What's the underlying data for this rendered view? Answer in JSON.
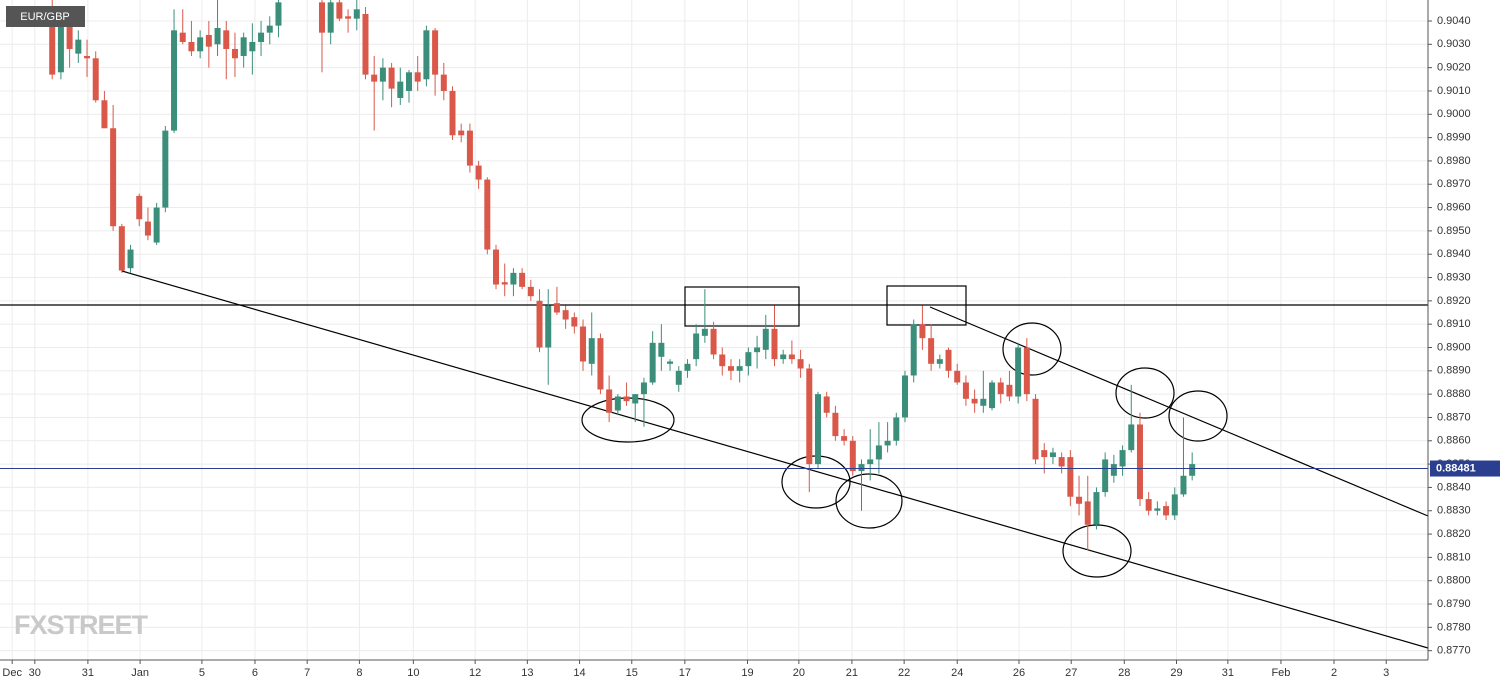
{
  "chart_data": {
    "type": "candlestick",
    "title": "EUR/GBP",
    "watermark": "FXSTREET",
    "grid": true,
    "xlim": [
      0,
      164.1
    ],
    "ylim": [
      0.8766,
      0.9049
    ],
    "xticks": [
      {
        "value": 1.4,
        "label": "Dec"
      },
      {
        "value": 4.0,
        "label": "30"
      },
      {
        "value": 10.1,
        "label": "31"
      },
      {
        "value": 16.1,
        "label": "Jan"
      },
      {
        "value": 23.2,
        "label": "5"
      },
      {
        "value": 29.3,
        "label": "6"
      },
      {
        "value": 35.3,
        "label": "7"
      },
      {
        "value": 41.3,
        "label": "8"
      },
      {
        "value": 47.5,
        "label": "10"
      },
      {
        "value": 54.6,
        "label": "12"
      },
      {
        "value": 60.6,
        "label": "13"
      },
      {
        "value": 66.6,
        "label": "14"
      },
      {
        "value": 72.6,
        "label": "15"
      },
      {
        "value": 78.7,
        "label": "17"
      },
      {
        "value": 85.9,
        "label": "19"
      },
      {
        "value": 91.8,
        "label": "20"
      },
      {
        "value": 97.9,
        "label": "21"
      },
      {
        "value": 103.9,
        "label": "22"
      },
      {
        "value": 110.0,
        "label": "24"
      },
      {
        "value": 117.1,
        "label": "26"
      },
      {
        "value": 123.1,
        "label": "27"
      },
      {
        "value": 129.2,
        "label": "28"
      },
      {
        "value": 135.2,
        "label": "29"
      },
      {
        "value": 141.1,
        "label": "31"
      },
      {
        "value": 147.2,
        "label": "Feb"
      },
      {
        "value": 153.3,
        "label": "2"
      },
      {
        "value": 159.3,
        "label": "3"
      }
    ],
    "yticks": [
      {
        "value": 0.877,
        "label": "0.8770"
      },
      {
        "value": 0.878,
        "label": "0.8780"
      },
      {
        "value": 0.879,
        "label": "0.8790"
      },
      {
        "value": 0.88,
        "label": "0.8800"
      },
      {
        "value": 0.881,
        "label": "0.8810"
      },
      {
        "value": 0.882,
        "label": "0.8820"
      },
      {
        "value": 0.883,
        "label": "0.8830"
      },
      {
        "value": 0.884,
        "label": "0.8840"
      },
      {
        "value": 0.885,
        "label": "0.8850"
      },
      {
        "value": 0.886,
        "label": "0.8860"
      },
      {
        "value": 0.887,
        "label": "0.8870"
      },
      {
        "value": 0.888,
        "label": "0.8880"
      },
      {
        "value": 0.889,
        "label": "0.8890"
      },
      {
        "value": 0.89,
        "label": "0.8900"
      },
      {
        "value": 0.891,
        "label": "0.8910"
      },
      {
        "value": 0.892,
        "label": "0.8920"
      },
      {
        "value": 0.893,
        "label": "0.8930"
      },
      {
        "value": 0.894,
        "label": "0.8940"
      },
      {
        "value": 0.895,
        "label": "0.8950"
      },
      {
        "value": 0.896,
        "label": "0.8960"
      },
      {
        "value": 0.897,
        "label": "0.8970"
      },
      {
        "value": 0.898,
        "label": "0.8980"
      },
      {
        "value": 0.899,
        "label": "0.8990"
      },
      {
        "value": 0.9,
        "label": "0.9000"
      },
      {
        "value": 0.901,
        "label": "0.9010"
      },
      {
        "value": 0.902,
        "label": "0.9020"
      },
      {
        "value": 0.903,
        "label": "0.9030"
      },
      {
        "value": 0.904,
        "label": "0.9040"
      }
    ],
    "last_price": {
      "value": 0.88481,
      "label": "0.88481"
    },
    "series": [
      {
        "up_color": "#3b8e7a",
        "down_color": "#d9584a",
        "x": [
          6,
          7,
          8,
          9,
          10,
          11,
          12,
          13,
          14,
          15,
          16,
          17,
          18,
          19,
          20,
          21,
          22,
          23,
          24,
          25,
          26,
          27,
          28,
          29,
          30,
          31,
          32,
          37,
          38,
          39,
          40,
          41,
          42,
          43,
          44,
          45,
          46,
          47,
          48,
          49,
          50,
          51,
          52,
          53,
          54,
          55,
          56,
          57,
          58,
          59,
          60,
          61,
          62,
          63,
          64,
          65,
          66,
          67,
          68,
          69,
          70,
          71,
          72,
          73,
          74,
          75,
          76,
          77,
          78,
          79,
          80,
          81,
          82,
          83,
          84,
          85,
          86,
          87,
          88,
          89,
          90,
          91,
          92,
          93,
          94,
          95,
          96,
          97,
          98,
          99,
          100,
          101,
          102,
          103,
          104,
          105,
          106,
          107,
          108,
          109,
          110,
          111,
          112,
          113,
          114,
          115,
          116,
          117,
          118,
          119,
          120,
          121,
          122,
          123,
          124,
          125,
          126,
          127,
          128,
          129,
          130,
          131,
          132,
          133,
          134,
          135,
          136,
          137
        ],
        "ohlc": [
          [
            0.9045,
            0.905,
            0.9015,
            0.9017
          ],
          [
            0.9018,
            0.9045,
            0.9015,
            0.904
          ],
          [
            0.904,
            0.9045,
            0.902,
            0.9028
          ],
          [
            0.9026,
            0.9036,
            0.9022,
            0.9032
          ],
          [
            0.9025,
            0.9032,
            0.9016,
            0.9024
          ],
          [
            0.9024,
            0.9027,
            0.9005,
            0.9006
          ],
          [
            0.9006,
            0.901,
            0.8995,
            0.8994
          ],
          [
            0.8994,
            0.9004,
            0.895,
            0.8952
          ],
          [
            0.8952,
            0.8953,
            0.8932,
            0.8933
          ],
          [
            0.8934,
            0.8944,
            0.8932,
            0.8942
          ],
          [
            0.8965,
            0.8966,
            0.8952,
            0.8955
          ],
          [
            0.8954,
            0.896,
            0.8946,
            0.8948
          ],
          [
            0.8945,
            0.8962,
            0.8944,
            0.896
          ],
          [
            0.896,
            0.8995,
            0.8958,
            0.8993
          ],
          [
            0.8993,
            0.9045,
            0.8992,
            0.9036
          ],
          [
            0.9035,
            0.9045,
            0.903,
            0.9031
          ],
          [
            0.9031,
            0.904,
            0.9025,
            0.9027
          ],
          [
            0.9027,
            0.9036,
            0.9024,
            0.9033
          ],
          [
            0.9034,
            0.904,
            0.902,
            0.9029
          ],
          [
            0.903,
            0.905,
            0.9025,
            0.9037
          ],
          [
            0.9036,
            0.904,
            0.9015,
            0.9028
          ],
          [
            0.9028,
            0.9035,
            0.9016,
            0.9024
          ],
          [
            0.9025,
            0.9035,
            0.902,
            0.9033
          ],
          [
            0.9027,
            0.9039,
            0.9017,
            0.9031
          ],
          [
            0.9031,
            0.904,
            0.9025,
            0.9035
          ],
          [
            0.9035,
            0.9042,
            0.903,
            0.9038
          ],
          [
            0.9038,
            0.905,
            0.9033,
            0.9048
          ],
          [
            0.9048,
            0.905,
            0.9018,
            0.9035
          ],
          [
            0.9035,
            0.905,
            0.903,
            0.9048
          ],
          [
            0.9048,
            0.905,
            0.904,
            0.9041
          ],
          [
            0.9042,
            0.9045,
            0.9035,
            0.9041
          ],
          [
            0.9041,
            0.905,
            0.9036,
            0.9045
          ],
          [
            0.9043,
            0.9046,
            0.9015,
            0.9017
          ],
          [
            0.9017,
            0.9025,
            0.8993,
            0.9014
          ],
          [
            0.9014,
            0.9024,
            0.9006,
            0.902
          ],
          [
            0.902,
            0.9022,
            0.9003,
            0.9011
          ],
          [
            0.9007,
            0.902,
            0.9004,
            0.9014
          ],
          [
            0.901,
            0.9019,
            0.9005,
            0.9018
          ],
          [
            0.9018,
            0.9025,
            0.901,
            0.9014
          ],
          [
            0.9015,
            0.9038,
            0.9012,
            0.9036
          ],
          [
            0.9036,
            0.9037,
            0.9008,
            0.9017
          ],
          [
            0.9017,
            0.9022,
            0.9006,
            0.901
          ],
          [
            0.901,
            0.9012,
            0.8989,
            0.8991
          ],
          [
            0.8993,
            0.8996,
            0.8988,
            0.8991
          ],
          [
            0.8993,
            0.8996,
            0.8975,
            0.8978
          ],
          [
            0.8978,
            0.898,
            0.8968,
            0.8972
          ],
          [
            0.8972,
            0.8973,
            0.894,
            0.8942
          ],
          [
            0.8942,
            0.8944,
            0.8925,
            0.8927
          ],
          [
            0.8928,
            0.8936,
            0.8922,
            0.8927
          ],
          [
            0.8927,
            0.8934,
            0.8922,
            0.8932
          ],
          [
            0.8932,
            0.8934,
            0.8925,
            0.8926
          ],
          [
            0.8926,
            0.8929,
            0.892,
            0.8922
          ],
          [
            0.892,
            0.8925,
            0.8898,
            0.89
          ],
          [
            0.89,
            0.8925,
            0.8884,
            0.8918
          ],
          [
            0.8919,
            0.8926,
            0.8914,
            0.8915
          ],
          [
            0.8916,
            0.8918,
            0.8908,
            0.8912
          ],
          [
            0.8913,
            0.8915,
            0.8906,
            0.8909
          ],
          [
            0.8909,
            0.8912,
            0.889,
            0.8894
          ],
          [
            0.8893,
            0.8915,
            0.8888,
            0.8904
          ],
          [
            0.8904,
            0.8906,
            0.888,
            0.8882
          ],
          [
            0.8882,
            0.8888,
            0.8868,
            0.8872
          ],
          [
            0.8873,
            0.888,
            0.8871,
            0.8879
          ],
          [
            0.8879,
            0.8885,
            0.8875,
            0.8877
          ],
          [
            0.8876,
            0.888,
            0.8868,
            0.888
          ],
          [
            0.888,
            0.8887,
            0.8866,
            0.8885
          ],
          [
            0.8885,
            0.8907,
            0.8884,
            0.8902
          ],
          [
            0.8896,
            0.891,
            0.889,
            0.8902
          ],
          [
            0.8893,
            0.8895,
            0.889,
            0.8894
          ],
          [
            0.8884,
            0.8892,
            0.8881,
            0.889
          ],
          [
            0.889,
            0.8895,
            0.8887,
            0.8893
          ],
          [
            0.8895,
            0.891,
            0.8892,
            0.8906
          ],
          [
            0.8905,
            0.8925,
            0.8902,
            0.8908
          ],
          [
            0.8908,
            0.8911,
            0.8895,
            0.8897
          ],
          [
            0.8897,
            0.89,
            0.8888,
            0.8892
          ],
          [
            0.8892,
            0.8895,
            0.8886,
            0.889
          ],
          [
            0.889,
            0.8895,
            0.8885,
            0.8892
          ],
          [
            0.8892,
            0.89,
            0.8888,
            0.8898
          ],
          [
            0.8898,
            0.8905,
            0.8891,
            0.89
          ],
          [
            0.8899,
            0.8914,
            0.8895,
            0.8908
          ],
          [
            0.8908,
            0.8918,
            0.8892,
            0.8895
          ],
          [
            0.8895,
            0.8899,
            0.8893,
            0.8897
          ],
          [
            0.8897,
            0.8903,
            0.8893,
            0.8895
          ],
          [
            0.8895,
            0.8899,
            0.8887,
            0.8891
          ],
          [
            0.8891,
            0.8893,
            0.8838,
            0.885
          ],
          [
            0.885,
            0.8881,
            0.8848,
            0.888
          ],
          [
            0.8879,
            0.8881,
            0.887,
            0.8872
          ],
          [
            0.8872,
            0.8875,
            0.886,
            0.8862
          ],
          [
            0.8862,
            0.8865,
            0.8858,
            0.886
          ],
          [
            0.886,
            0.8862,
            0.8845,
            0.8847
          ],
          [
            0.8847,
            0.8852,
            0.883,
            0.885
          ],
          [
            0.885,
            0.8865,
            0.8843,
            0.8852
          ],
          [
            0.8852,
            0.8868,
            0.8846,
            0.8858
          ],
          [
            0.8858,
            0.8868,
            0.8855,
            0.886
          ],
          [
            0.886,
            0.8872,
            0.8858,
            0.887
          ],
          [
            0.887,
            0.889,
            0.8868,
            0.8888
          ],
          [
            0.8888,
            0.8912,
            0.8885,
            0.891
          ],
          [
            0.891,
            0.8918,
            0.8899,
            0.8904
          ],
          [
            0.8904,
            0.891,
            0.889,
            0.8893
          ],
          [
            0.8893,
            0.8897,
            0.8891,
            0.8895
          ],
          [
            0.8899,
            0.89,
            0.8887,
            0.889
          ],
          [
            0.889,
            0.8893,
            0.8884,
            0.8885
          ],
          [
            0.8885,
            0.8888,
            0.8875,
            0.8878
          ],
          [
            0.8878,
            0.8882,
            0.8872,
            0.8876
          ],
          [
            0.8875,
            0.889,
            0.8872,
            0.8878
          ],
          [
            0.8874,
            0.8886,
            0.8873,
            0.8885
          ],
          [
            0.8885,
            0.8887,
            0.8876,
            0.888
          ],
          [
            0.8884,
            0.889,
            0.8877,
            0.8879
          ],
          [
            0.8879,
            0.8902,
            0.8876,
            0.89
          ],
          [
            0.89,
            0.8904,
            0.8877,
            0.888
          ],
          [
            0.8878,
            0.888,
            0.885,
            0.8852
          ],
          [
            0.8856,
            0.8859,
            0.8846,
            0.8853
          ],
          [
            0.8853,
            0.8857,
            0.885,
            0.8855
          ],
          [
            0.8853,
            0.8855,
            0.8846,
            0.8849
          ],
          [
            0.8853,
            0.8856,
            0.8832,
            0.8836
          ],
          [
            0.8836,
            0.8845,
            0.8828,
            0.8833
          ],
          [
            0.8834,
            0.8845,
            0.8813,
            0.8824
          ],
          [
            0.8824,
            0.884,
            0.8822,
            0.8838
          ],
          [
            0.8838,
            0.8855,
            0.8836,
            0.8852
          ],
          [
            0.8845,
            0.8854,
            0.8842,
            0.885
          ],
          [
            0.8849,
            0.8858,
            0.8845,
            0.8856
          ],
          [
            0.8856,
            0.8884,
            0.8855,
            0.8867
          ],
          [
            0.8867,
            0.8872,
            0.8832,
            0.8835
          ],
          [
            0.8835,
            0.8838,
            0.8828,
            0.883
          ],
          [
            0.883,
            0.8834,
            0.8828,
            0.8831
          ],
          [
            0.8832,
            0.8834,
            0.8826,
            0.8828
          ],
          [
            0.8828,
            0.884,
            0.8826,
            0.8837
          ],
          [
            0.8837,
            0.887,
            0.8836,
            0.8845
          ],
          [
            0.8845,
            0.8855,
            0.8843,
            0.885
          ]
        ]
      }
    ]
  }
}
